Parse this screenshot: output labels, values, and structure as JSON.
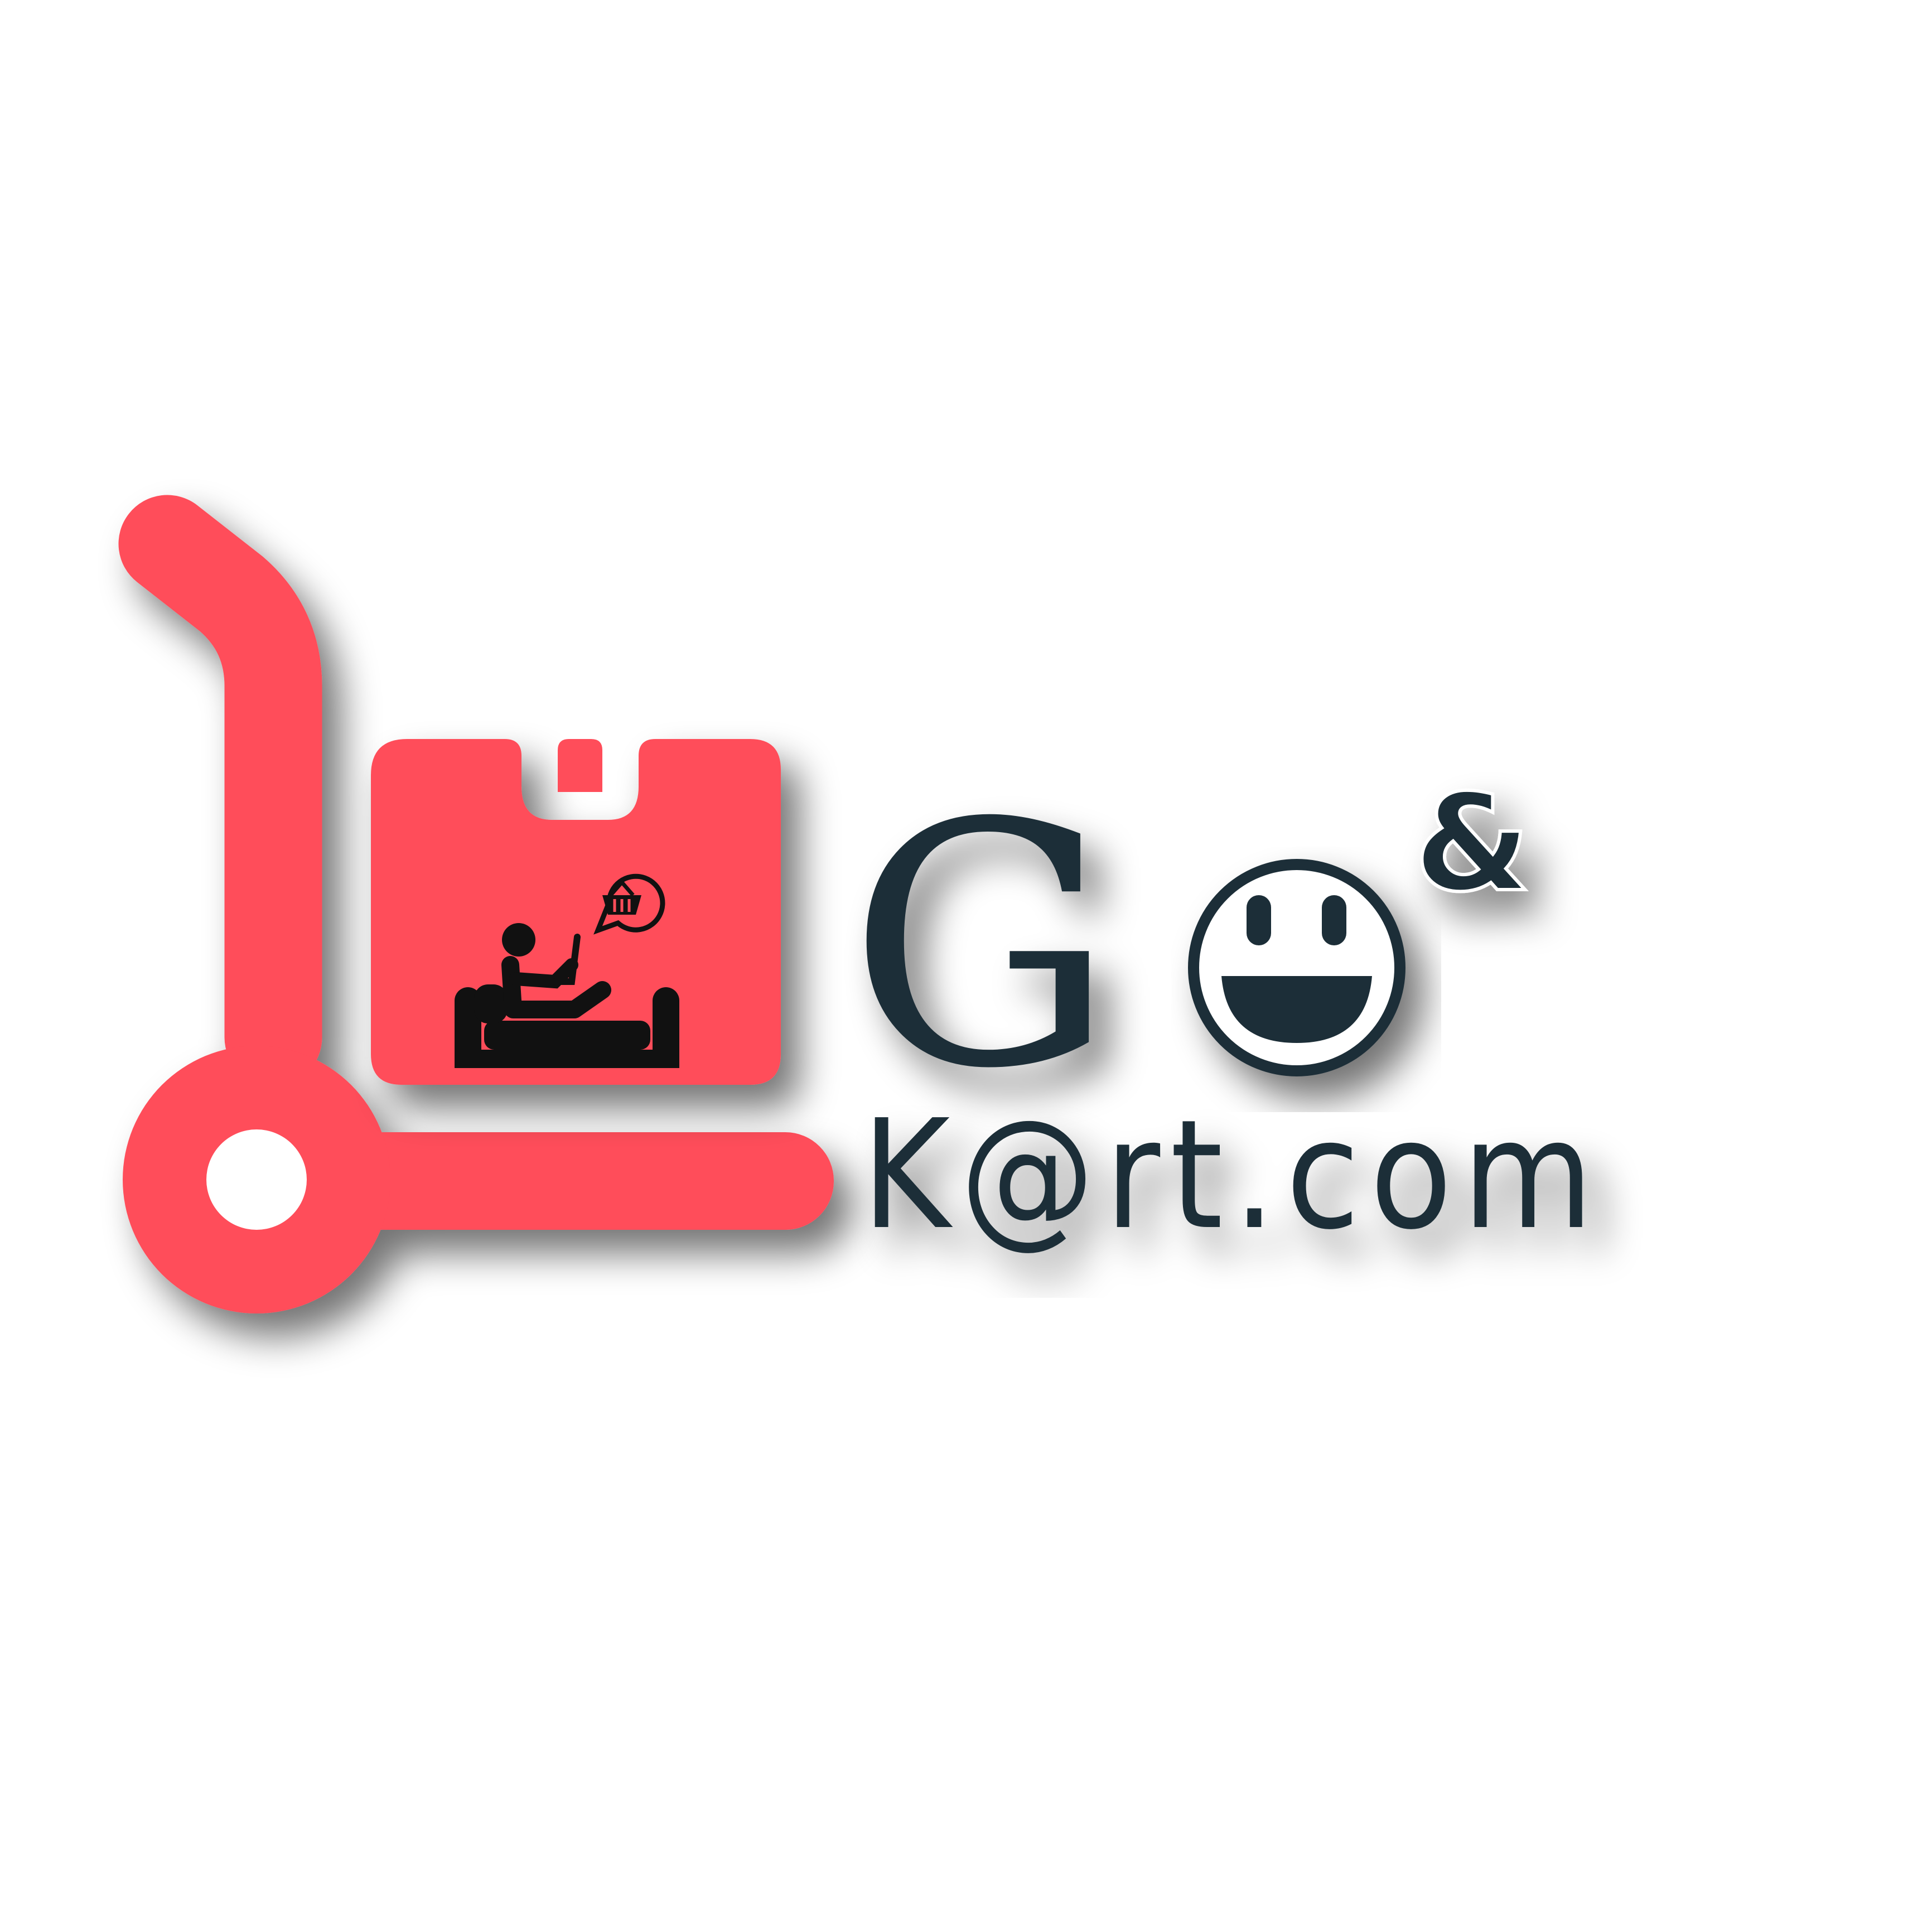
{
  "brand": {
    "word_go": "G",
    "ampersand": "&",
    "word_kart": "K@rt.com"
  },
  "icons": {
    "cart": "hand-truck-icon",
    "box": "parcel-box-icon",
    "person": "person-on-sofa-with-laptop-icon",
    "basket": "shopping-basket-icon",
    "smiley": "smiley-face-icon"
  },
  "colors": {
    "accent": "#FF4D5A",
    "text": "#1F2F38",
    "background": "#FFFFFF"
  }
}
